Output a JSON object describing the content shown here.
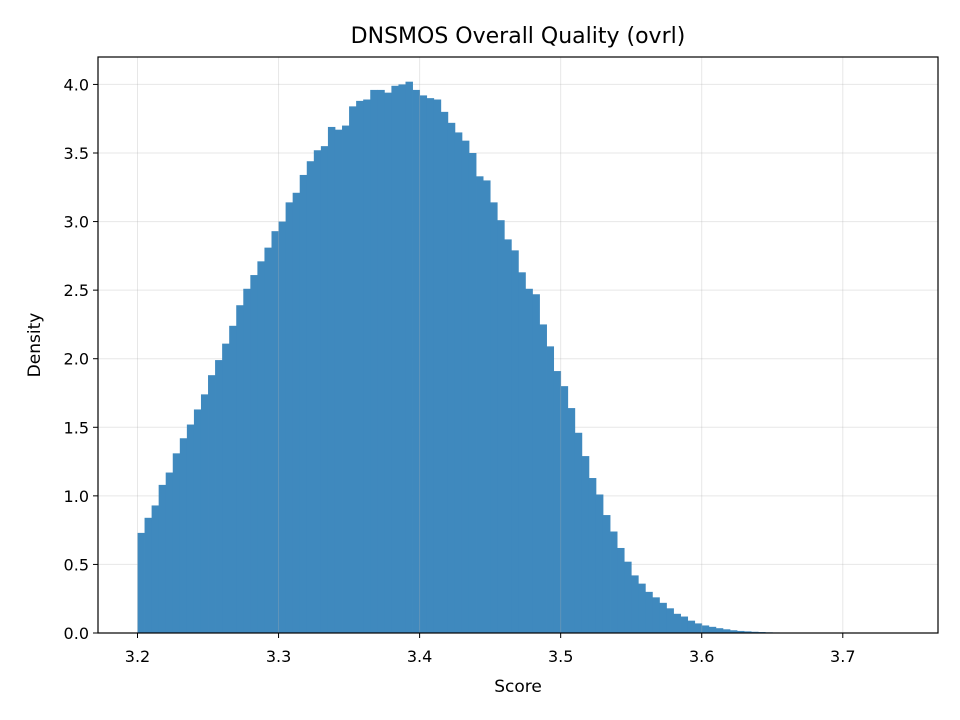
{
  "chart_data": {
    "type": "bar",
    "title": "DNSMOS Overall Quality (ovrl)",
    "xlabel": "Score",
    "ylabel": "Density",
    "xlim": [
      3.172,
      3.7675
    ],
    "ylim": [
      0,
      4.2
    ],
    "xticks": [
      "3.2",
      "3.3",
      "3.4",
      "3.5",
      "3.6",
      "3.7"
    ],
    "yticks": [
      "0.0",
      "0.5",
      "1.0",
      "1.5",
      "2.0",
      "2.5",
      "3.0",
      "3.5",
      "4.0"
    ],
    "grid": true,
    "bin_start": 3.2,
    "bin_width": 0.005,
    "bar_color": "#3f89be",
    "values": [
      0.73,
      0.84,
      0.93,
      1.08,
      1.17,
      1.31,
      1.42,
      1.52,
      1.63,
      1.74,
      1.88,
      1.99,
      2.11,
      2.24,
      2.39,
      2.51,
      2.61,
      2.71,
      2.81,
      2.93,
      3.0,
      3.14,
      3.21,
      3.34,
      3.44,
      3.52,
      3.55,
      3.69,
      3.67,
      3.7,
      3.84,
      3.88,
      3.89,
      3.96,
      3.96,
      3.94,
      3.99,
      4.0,
      4.02,
      3.96,
      3.92,
      3.9,
      3.89,
      3.8,
      3.72,
      3.65,
      3.59,
      3.5,
      3.33,
      3.3,
      3.14,
      3.01,
      2.87,
      2.79,
      2.63,
      2.51,
      2.47,
      2.25,
      2.09,
      1.91,
      1.8,
      1.64,
      1.46,
      1.29,
      1.13,
      1.01,
      0.86,
      0.74,
      0.62,
      0.52,
      0.42,
      0.36,
      0.3,
      0.26,
      0.22,
      0.18,
      0.14,
      0.12,
      0.09,
      0.07,
      0.055,
      0.045,
      0.035,
      0.027,
      0.02,
      0.015,
      0.012,
      0.009,
      0.007,
      0.005,
      0.004,
      0.003,
      0.002,
      0.002,
      0.001,
      0.001,
      0.001,
      0.001,
      0.001,
      0.001,
      0.0005,
      0.0005,
      0.0003,
      0.0003,
      0.0002,
      0.0002,
      0.0001,
      0.0001
    ]
  }
}
